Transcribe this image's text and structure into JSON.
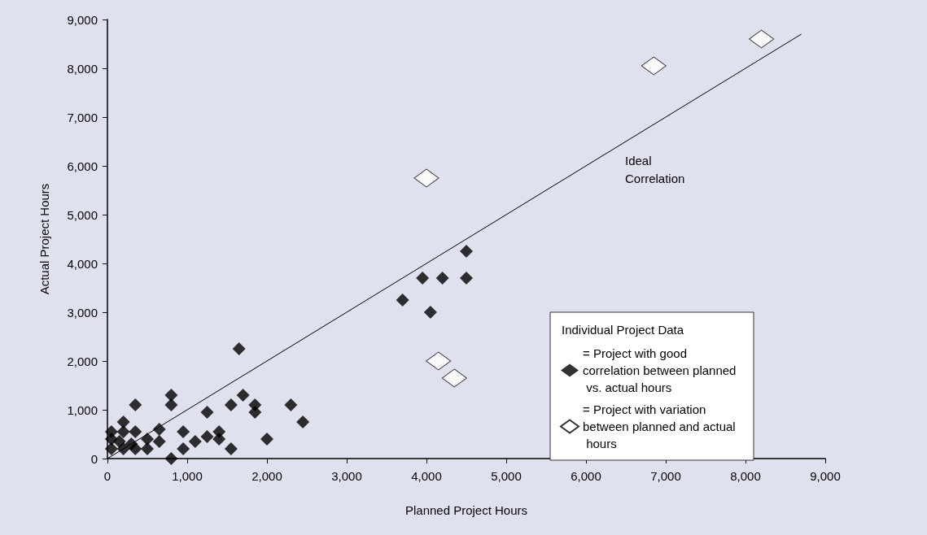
{
  "chart_data": {
    "type": "scatter",
    "xlabel": "Planned Project Hours",
    "ylabel": "Actual Project Hours",
    "legend_title": "Individual Project Data",
    "legend": "right",
    "marker": "diamond",
    "grid": false,
    "xlim": [
      0,
      9000
    ],
    "xticks": [
      0,
      {
        "value": 1000,
        "label": "1,000"
      },
      {
        "value": 2000,
        "label": "2,000"
      },
      {
        "value": 3000,
        "label": "3,000"
      },
      {
        "value": 4000,
        "label": "4,000"
      },
      {
        "value": 5000,
        "label": "5,000"
      },
      {
        "value": 6000,
        "label": "6,000"
      },
      {
        "value": 7000,
        "label": "7,000"
      },
      {
        "value": 8000,
        "label": "8,000"
      },
      {
        "value": 9000,
        "label": "9,000"
      }
    ],
    "ylim": [
      0,
      9000
    ],
    "yticks": [
      0,
      {
        "value": 1000,
        "label": "1,000"
      },
      {
        "value": 2000,
        "label": "2,000"
      },
      {
        "value": 3000,
        "label": "3,000"
      },
      {
        "value": 4000,
        "label": "4,000"
      },
      {
        "value": 5000,
        "label": "5,000"
      },
      {
        "value": 6000,
        "label": "6,000"
      },
      {
        "value": 7000,
        "label": "7,000"
      },
      {
        "value": 8000,
        "label": "8,000"
      },
      {
        "value": 9000,
        "label": "9,000"
      }
    ],
    "annotations": [
      "Ideal\nCorrelation"
    ],
    "series": [
      {
        "name": "= Project with good correlation between planned vs. actual hours",
        "color": "#000000",
        "x": [
          50,
          50,
          50,
          150,
          200,
          200,
          200,
          300,
          350,
          350,
          350,
          500,
          500,
          650,
          650,
          800,
          800,
          800,
          950,
          950,
          1100,
          1250,
          1250,
          1400,
          1400,
          1550,
          1550,
          1650,
          1700,
          1850,
          1850,
          2000,
          2300,
          2450,
          3700,
          3950,
          4050,
          4200,
          4500,
          4500
        ],
        "values": [
          200,
          400,
          550,
          350,
          200,
          550,
          750,
          300,
          200,
          550,
          1100,
          400,
          200,
          600,
          350,
          0,
          1100,
          1300,
          550,
          200,
          350,
          450,
          950,
          550,
          400,
          200,
          1100,
          2250,
          1300,
          1100,
          950,
          400,
          1100,
          750,
          3250,
          3700,
          3000,
          3700,
          3700,
          4250
        ]
      },
      {
        "name": "= Project with variation between planned and actual hours",
        "color": "#ffffff",
        "x": [
          4000,
          4150,
          4350,
          6850,
          8200
        ],
        "values": [
          5750,
          2000,
          1650,
          8050,
          8600
        ]
      },
      {
        "type": "line",
        "color": "#000000",
        "marker": "none",
        "x": [
          0,
          8700
        ],
        "values": [
          0,
          8700
        ]
      }
    ]
  }
}
